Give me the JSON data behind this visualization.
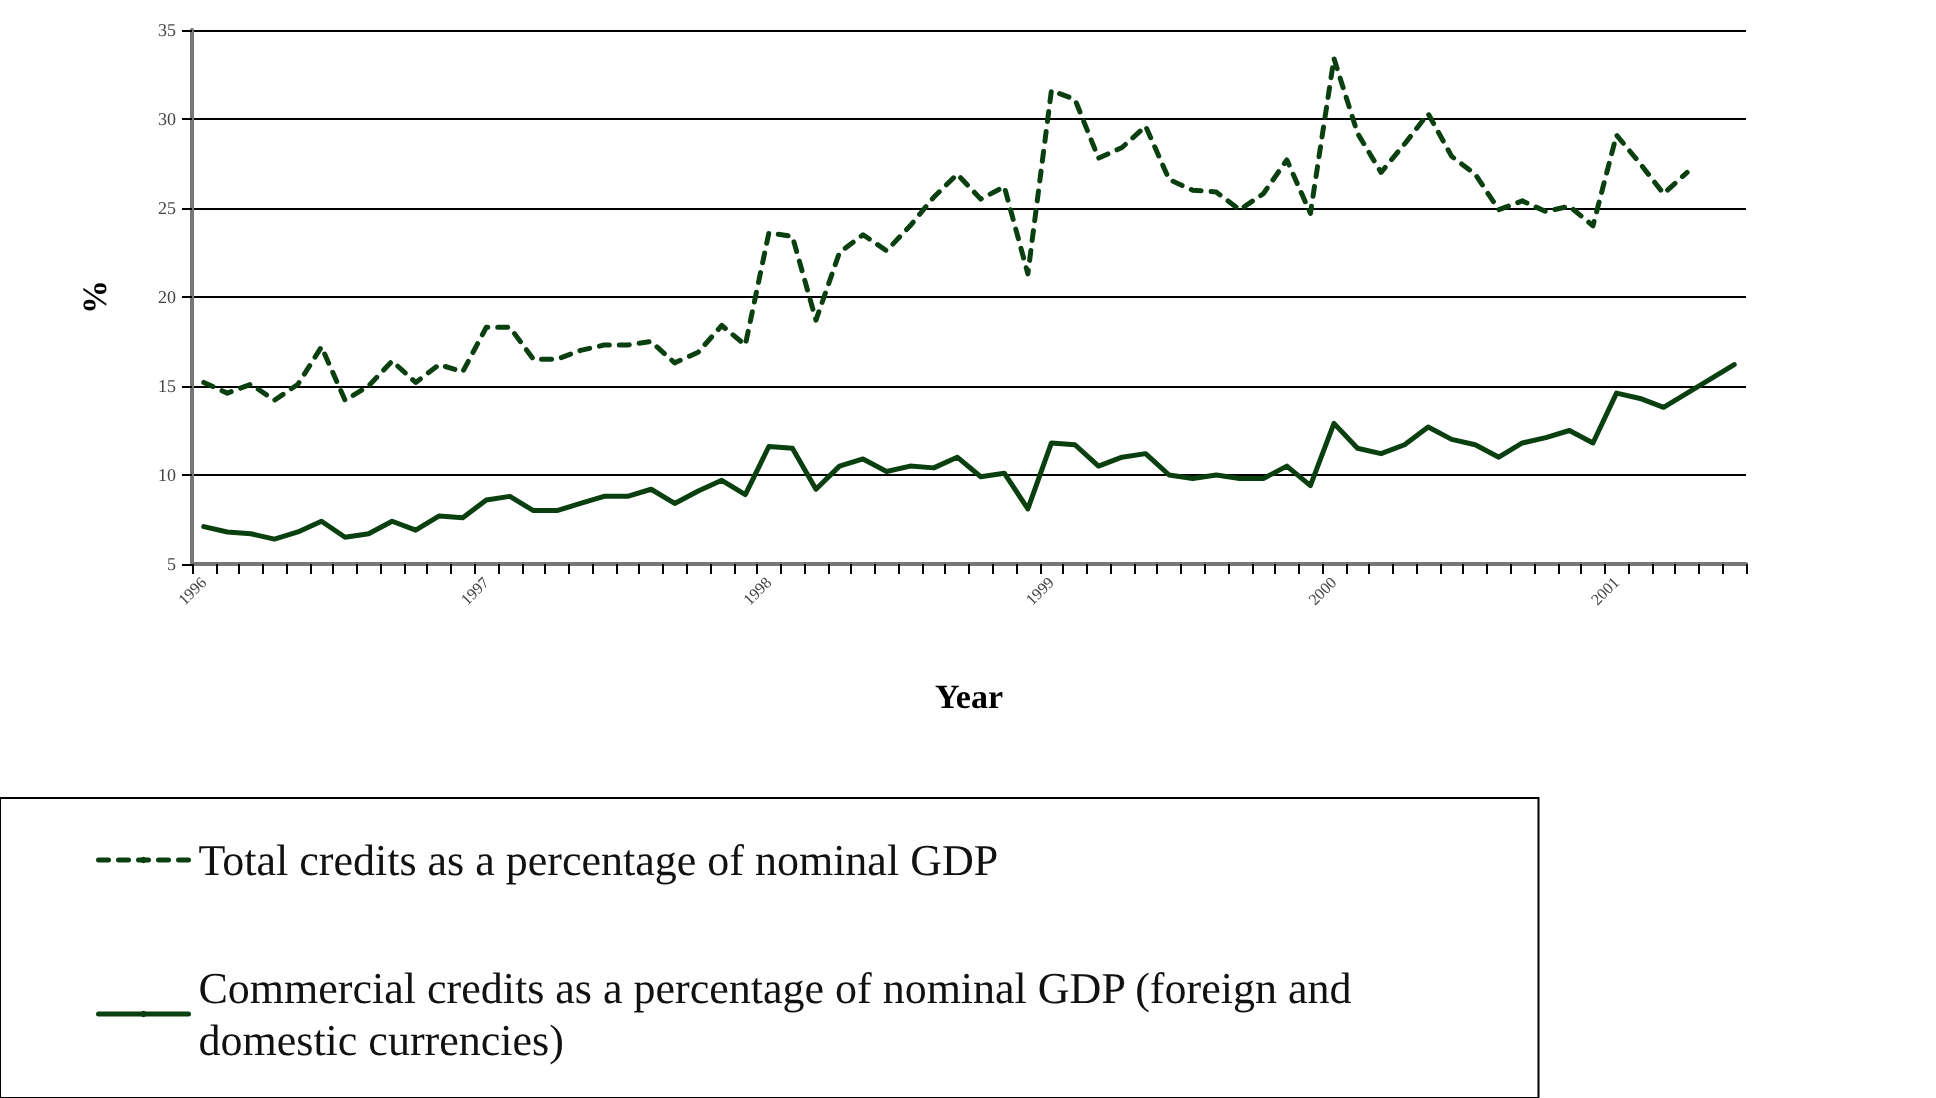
{
  "chart_data": {
    "type": "line",
    "xlabel": "Year",
    "ylabel": "%",
    "categories": [
      "1996",
      null,
      null,
      null,
      null,
      null,
      null,
      null,
      null,
      null,
      null,
      null,
      "1997",
      null,
      null,
      null,
      null,
      null,
      null,
      null,
      null,
      null,
      null,
      null,
      "1998",
      null,
      null,
      null,
      null,
      null,
      null,
      null,
      null,
      null,
      null,
      null,
      "1999",
      null,
      null,
      null,
      null,
      null,
      null,
      null,
      null,
      null,
      null,
      null,
      "2000",
      null,
      null,
      null,
      null,
      null,
      null,
      null,
      null,
      null,
      null,
      null,
      "2001",
      null,
      null,
      null,
      null,
      null
    ],
    "series": [
      {
        "name": "Total credits as a percentage of nominal GDP",
        "color": "#0a4010",
        "line_style": "dashed",
        "values": [
          15.2,
          14.6,
          15.1,
          14.2,
          15.1,
          17.2,
          14.2,
          15.0,
          16.4,
          15.2,
          16.2,
          15.8,
          18.3,
          18.3,
          16.5,
          16.5,
          17.0,
          17.3,
          17.3,
          17.5,
          16.3,
          16.9,
          18.4,
          17.3,
          23.6,
          23.4,
          18.7,
          22.5,
          23.5,
          22.6,
          24.0,
          25.6,
          26.9,
          25.5,
          26.2,
          21.3,
          31.6,
          31.1,
          27.8,
          28.4,
          29.6,
          26.6,
          26.0,
          25.9,
          24.9,
          25.8,
          27.7,
          24.7,
          33.4,
          29.2,
          27.0,
          28.6,
          30.3,
          27.9,
          26.9,
          24.9,
          25.4,
          24.8,
          25.1,
          24.0,
          29.1,
          27.5,
          25.8,
          27.0,
          null,
          null
        ]
      },
      {
        "name": "Commercial credits as a percentage of nominal GDP (foreign and domestic currencies)",
        "color": "#0a4010",
        "line_style": "solid",
        "values": [
          7.1,
          6.8,
          6.7,
          6.4,
          6.8,
          7.4,
          6.5,
          6.7,
          7.4,
          6.9,
          7.7,
          7.6,
          8.6,
          8.8,
          8.0,
          8.0,
          8.4,
          8.8,
          8.8,
          9.2,
          8.4,
          9.1,
          9.7,
          8.9,
          11.6,
          11.5,
          9.2,
          10.5,
          10.9,
          10.2,
          10.5,
          10.4,
          11.0,
          9.9,
          10.1,
          8.1,
          11.8,
          11.7,
          10.5,
          11.0,
          11.2,
          10.0,
          9.8,
          10.0,
          9.8,
          9.8,
          10.5,
          9.4,
          12.9,
          11.5,
          11.2,
          11.7,
          12.7,
          12.0,
          11.7,
          11.0,
          11.8,
          12.1,
          12.5,
          11.8,
          14.6,
          14.3,
          13.8,
          14.6,
          15.4,
          16.2
        ]
      }
    ],
    "ylim": [
      5,
      35
    ],
    "yticks": [
      5,
      10,
      15,
      20,
      25,
      30,
      35
    ],
    "grid": "y",
    "legend": "bottom",
    "marker": "none"
  }
}
